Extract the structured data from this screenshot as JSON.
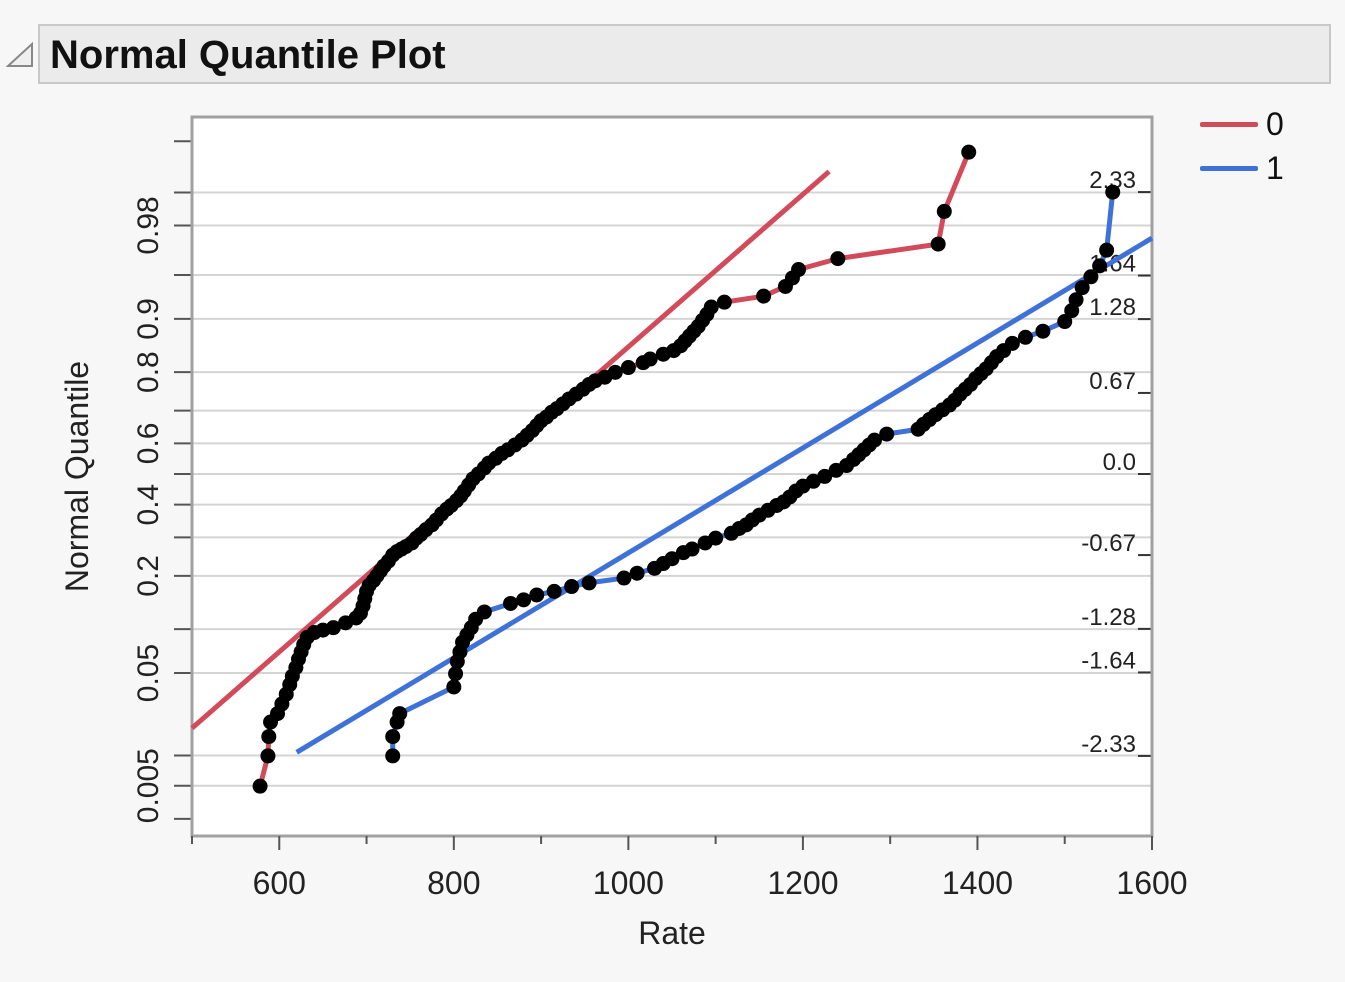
{
  "header": {
    "title": "Normal Quantile Plot"
  },
  "legend": {
    "items": [
      {
        "label": "0",
        "color": "#d24b5a"
      },
      {
        "label": "1",
        "color": "#3f72d9"
      }
    ]
  },
  "chart_data": {
    "type": "scatter",
    "title": "",
    "xlabel": "Rate",
    "ylabel": "Normal Quantile",
    "xlim": [
      500,
      1600
    ],
    "ylim": [
      -2.8,
      2.8
    ],
    "x_ticks": [
      600,
      800,
      1000,
      1200,
      1400,
      1600
    ],
    "left_ticks": [
      {
        "label": "0.005",
        "z": -2.576
      },
      {
        "label": "0.05",
        "z": -1.645
      },
      {
        "label": "0.2",
        "z": -0.842
      },
      {
        "label": "0.4",
        "z": -0.253
      },
      {
        "label": "0.6",
        "z": 0.253
      },
      {
        "label": "0.8",
        "z": 0.842
      },
      {
        "label": "0.9",
        "z": 1.282
      },
      {
        "label": "0.98",
        "z": 2.054
      }
    ],
    "right_ticks": [
      "2.33",
      "1.64",
      "1.28",
      "0.67",
      "0.0",
      "-0.67",
      "-1.28",
      "-1.64",
      "-2.33"
    ],
    "grid": true,
    "legend_position": "top-right",
    "series": [
      {
        "name": "0",
        "color": "#d24b5a",
        "fit_line": [
          [
            500,
            -2.1
          ],
          [
            1230,
            2.5
          ]
        ],
        "points": [
          [
            578,
            -2.58
          ],
          [
            587,
            -2.33
          ],
          [
            588,
            -2.17
          ],
          [
            590,
            -2.05
          ],
          [
            598,
            -1.98
          ],
          [
            603,
            -1.9
          ],
          [
            608,
            -1.82
          ],
          [
            612,
            -1.74
          ],
          [
            615,
            -1.67
          ],
          [
            619,
            -1.6
          ],
          [
            622,
            -1.53
          ],
          [
            625,
            -1.47
          ],
          [
            628,
            -1.41
          ],
          [
            632,
            -1.35
          ],
          [
            640,
            -1.31
          ],
          [
            650,
            -1.29
          ],
          [
            662,
            -1.27
          ],
          [
            676,
            -1.23
          ],
          [
            688,
            -1.19
          ],
          [
            693,
            -1.15
          ],
          [
            696,
            -1.09
          ],
          [
            698,
            -1.03
          ],
          [
            700,
            -0.97
          ],
          [
            703,
            -0.92
          ],
          [
            708,
            -0.88
          ],
          [
            712,
            -0.84
          ],
          [
            716,
            -0.8
          ],
          [
            720,
            -0.76
          ],
          [
            725,
            -0.72
          ],
          [
            730,
            -0.67
          ],
          [
            735,
            -0.64
          ],
          [
            740,
            -0.62
          ],
          [
            745,
            -0.6
          ],
          [
            752,
            -0.57
          ],
          [
            757,
            -0.53
          ],
          [
            762,
            -0.5
          ],
          [
            768,
            -0.46
          ],
          [
            775,
            -0.42
          ],
          [
            780,
            -0.38
          ],
          [
            786,
            -0.33
          ],
          [
            792,
            -0.29
          ],
          [
            797,
            -0.26
          ],
          [
            803,
            -0.22
          ],
          [
            808,
            -0.18
          ],
          [
            812,
            -0.14
          ],
          [
            817,
            -0.09
          ],
          [
            822,
            -0.04
          ],
          [
            828,
            0.0
          ],
          [
            835,
            0.05
          ],
          [
            840,
            0.09
          ],
          [
            848,
            0.13
          ],
          [
            855,
            0.17
          ],
          [
            862,
            0.2
          ],
          [
            870,
            0.24
          ],
          [
            878,
            0.28
          ],
          [
            884,
            0.32
          ],
          [
            890,
            0.36
          ],
          [
            895,
            0.4
          ],
          [
            900,
            0.44
          ],
          [
            906,
            0.47
          ],
          [
            912,
            0.51
          ],
          [
            918,
            0.54
          ],
          [
            925,
            0.58
          ],
          [
            932,
            0.62
          ],
          [
            940,
            0.66
          ],
          [
            948,
            0.7
          ],
          [
            955,
            0.74
          ],
          [
            962,
            0.77
          ],
          [
            973,
            0.8
          ],
          [
            985,
            0.84
          ],
          [
            1000,
            0.88
          ],
          [
            1017,
            0.92
          ],
          [
            1025,
            0.95
          ],
          [
            1040,
            0.99
          ],
          [
            1052,
            1.02
          ],
          [
            1060,
            1.06
          ],
          [
            1065,
            1.1
          ],
          [
            1070,
            1.14
          ],
          [
            1075,
            1.18
          ],
          [
            1080,
            1.22
          ],
          [
            1085,
            1.27
          ],
          [
            1090,
            1.32
          ],
          [
            1095,
            1.38
          ],
          [
            1110,
            1.42
          ],
          [
            1155,
            1.47
          ],
          [
            1180,
            1.55
          ],
          [
            1188,
            1.62
          ],
          [
            1195,
            1.69
          ],
          [
            1240,
            1.78
          ],
          [
            1355,
            1.9
          ],
          [
            1362,
            2.17
          ],
          [
            1390,
            2.66
          ]
        ]
      },
      {
        "name": "1",
        "color": "#3f72d9",
        "fit_line": [
          [
            620,
            -2.3
          ],
          [
            1600,
            1.95
          ]
        ],
        "points": [
          [
            730,
            -2.33
          ],
          [
            730,
            -2.17
          ],
          [
            735,
            -2.05
          ],
          [
            738,
            -1.98
          ],
          [
            800,
            -1.76
          ],
          [
            802,
            -1.65
          ],
          [
            804,
            -1.55
          ],
          [
            807,
            -1.47
          ],
          [
            810,
            -1.39
          ],
          [
            815,
            -1.33
          ],
          [
            820,
            -1.27
          ],
          [
            825,
            -1.2
          ],
          [
            835,
            -1.14
          ],
          [
            865,
            -1.07
          ],
          [
            880,
            -1.04
          ],
          [
            895,
            -1.0
          ],
          [
            915,
            -0.97
          ],
          [
            935,
            -0.93
          ],
          [
            955,
            -0.9
          ],
          [
            995,
            -0.86
          ],
          [
            1010,
            -0.82
          ],
          [
            1030,
            -0.78
          ],
          [
            1040,
            -0.74
          ],
          [
            1050,
            -0.7
          ],
          [
            1063,
            -0.65
          ],
          [
            1073,
            -0.62
          ],
          [
            1088,
            -0.57
          ],
          [
            1100,
            -0.53
          ],
          [
            1118,
            -0.49
          ],
          [
            1127,
            -0.45
          ],
          [
            1135,
            -0.42
          ],
          [
            1142,
            -0.38
          ],
          [
            1150,
            -0.34
          ],
          [
            1160,
            -0.3
          ],
          [
            1170,
            -0.26
          ],
          [
            1178,
            -0.23
          ],
          [
            1185,
            -0.19
          ],
          [
            1192,
            -0.14
          ],
          [
            1200,
            -0.1
          ],
          [
            1212,
            -0.06
          ],
          [
            1225,
            -0.02
          ],
          [
            1238,
            0.03
          ],
          [
            1250,
            0.07
          ],
          [
            1258,
            0.12
          ],
          [
            1264,
            0.16
          ],
          [
            1270,
            0.2
          ],
          [
            1276,
            0.24
          ],
          [
            1282,
            0.28
          ],
          [
            1296,
            0.33
          ],
          [
            1332,
            0.37
          ],
          [
            1338,
            0.41
          ],
          [
            1345,
            0.45
          ],
          [
            1352,
            0.49
          ],
          [
            1360,
            0.53
          ],
          [
            1368,
            0.57
          ],
          [
            1374,
            0.61
          ],
          [
            1380,
            0.66
          ],
          [
            1386,
            0.7
          ],
          [
            1392,
            0.74
          ],
          [
            1398,
            0.79
          ],
          [
            1404,
            0.83
          ],
          [
            1410,
            0.87
          ],
          [
            1416,
            0.92
          ],
          [
            1422,
            0.97
          ],
          [
            1430,
            1.02
          ],
          [
            1440,
            1.08
          ],
          [
            1455,
            1.13
          ],
          [
            1475,
            1.18
          ],
          [
            1500,
            1.26
          ],
          [
            1508,
            1.35
          ],
          [
            1513,
            1.44
          ],
          [
            1520,
            1.54
          ],
          [
            1530,
            1.63
          ],
          [
            1540,
            1.72
          ],
          [
            1548,
            1.85
          ],
          [
            1555,
            2.33
          ]
        ]
      }
    ]
  }
}
